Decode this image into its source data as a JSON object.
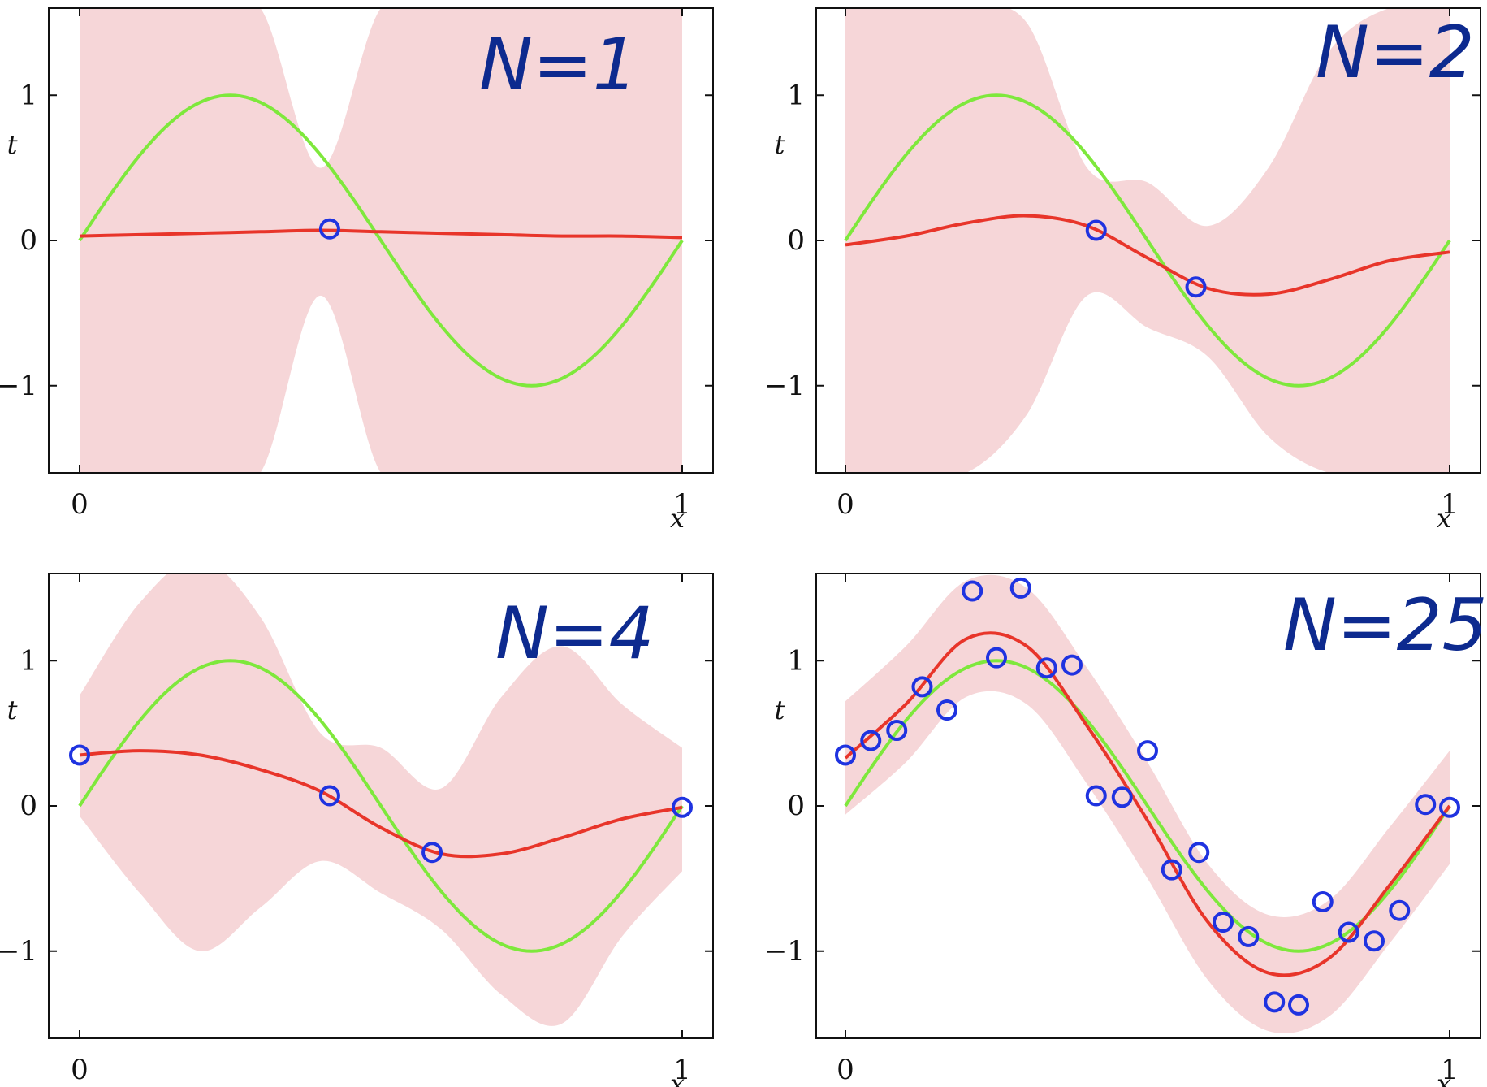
{
  "colors": {
    "truth": "#7ee83c",
    "mean": "#e8352a",
    "band": "#f6d6d8",
    "points": "#1f33e0",
    "annotation": "#0d2a8f",
    "axes": "#111111"
  },
  "chart_data": [
    {
      "type": "line",
      "annotation": "N=1",
      "xlabel": "x",
      "ylabel": "t",
      "xlim": [
        0,
        1
      ],
      "ylim": [
        -1.6,
        1.6
      ],
      "xticks": [
        0,
        1
      ],
      "yticks": [
        -1,
        0,
        1
      ],
      "x": [
        0,
        0.1,
        0.2,
        0.3,
        0.4,
        0.5,
        0.6,
        0.7,
        0.8,
        0.9,
        1.0
      ],
      "series": [
        {
          "role": "truth",
          "values": [
            0,
            0.59,
            0.95,
            0.95,
            0.59,
            0,
            -0.59,
            -0.95,
            -0.95,
            -0.59,
            0
          ]
        },
        {
          "role": "mean",
          "values": [
            0.03,
            0.04,
            0.05,
            0.06,
            0.07,
            0.06,
            0.05,
            0.04,
            0.03,
            0.03,
            0.02
          ]
        },
        {
          "role": "band_upper",
          "values": [
            1.6,
            1.6,
            1.6,
            1.6,
            0.5,
            1.6,
            1.6,
            1.6,
            1.6,
            1.6,
            1.6
          ]
        },
        {
          "role": "band_lower",
          "values": [
            -1.6,
            -1.6,
            -1.6,
            -1.6,
            -0.38,
            -1.6,
            -1.6,
            -1.6,
            -1.6,
            -1.6,
            -1.6
          ]
        }
      ],
      "points": {
        "x": [
          0.415
        ],
        "y": [
          0.08
        ]
      }
    },
    {
      "type": "line",
      "annotation": "N=2",
      "xlabel": "x",
      "ylabel": "t",
      "xlim": [
        0,
        1
      ],
      "ylim": [
        -1.6,
        1.6
      ],
      "xticks": [
        0,
        1
      ],
      "yticks": [
        -1,
        0,
        1
      ],
      "x": [
        0,
        0.1,
        0.2,
        0.3,
        0.4,
        0.5,
        0.6,
        0.7,
        0.8,
        0.9,
        1.0
      ],
      "series": [
        {
          "role": "truth",
          "values": [
            0,
            0.59,
            0.95,
            0.95,
            0.59,
            0,
            -0.59,
            -0.95,
            -0.95,
            -0.59,
            0
          ]
        },
        {
          "role": "mean",
          "values": [
            -0.03,
            0.03,
            0.12,
            0.17,
            0.1,
            -0.12,
            -0.33,
            -0.37,
            -0.27,
            -0.14,
            -0.08
          ]
        },
        {
          "role": "band_upper",
          "values": [
            1.6,
            1.6,
            1.6,
            1.5,
            0.5,
            0.4,
            0.1,
            0.5,
            1.3,
            1.6,
            1.6
          ]
        },
        {
          "role": "band_lower",
          "values": [
            -1.6,
            -1.6,
            -1.6,
            -1.2,
            -0.38,
            -0.6,
            -0.8,
            -1.35,
            -1.6,
            -1.6,
            -1.6
          ]
        }
      ],
      "points": {
        "x": [
          0.415,
          0.58
        ],
        "y": [
          0.07,
          -0.32
        ]
      }
    },
    {
      "type": "line",
      "annotation": "N=4",
      "xlabel": "x",
      "ylabel": "t",
      "xlim": [
        0,
        1
      ],
      "ylim": [
        -1.6,
        1.6
      ],
      "xticks": [
        0,
        1
      ],
      "yticks": [
        -1,
        0,
        1
      ],
      "x": [
        0,
        0.1,
        0.2,
        0.3,
        0.4,
        0.5,
        0.6,
        0.7,
        0.8,
        0.9,
        1.0
      ],
      "series": [
        {
          "role": "truth",
          "values": [
            0,
            0.59,
            0.95,
            0.95,
            0.59,
            0,
            -0.59,
            -0.95,
            -0.95,
            -0.59,
            0
          ]
        },
        {
          "role": "mean",
          "values": [
            0.35,
            0.38,
            0.35,
            0.25,
            0.1,
            -0.15,
            -0.33,
            -0.33,
            -0.22,
            -0.09,
            -0.01
          ]
        },
        {
          "role": "band_upper",
          "values": [
            0.76,
            1.4,
            1.7,
            1.3,
            0.5,
            0.4,
            0.12,
            0.75,
            1.1,
            0.7,
            0.4
          ]
        },
        {
          "role": "band_lower",
          "values": [
            -0.07,
            -0.6,
            -1.0,
            -0.7,
            -0.38,
            -0.6,
            -0.85,
            -1.3,
            -1.5,
            -0.9,
            -0.45
          ]
        }
      ],
      "points": {
        "x": [
          0,
          0.415,
          0.585,
          1.0
        ],
        "y": [
          0.35,
          0.07,
          -0.32,
          -0.01
        ]
      }
    },
    {
      "type": "line",
      "annotation": "N=25",
      "xlabel": "x",
      "ylabel": "t",
      "xlim": [
        0,
        1
      ],
      "ylim": [
        -1.6,
        1.6
      ],
      "xticks": [
        0,
        1
      ],
      "yticks": [
        -1,
        0,
        1
      ],
      "x": [
        0,
        0.1,
        0.2,
        0.3,
        0.4,
        0.5,
        0.6,
        0.7,
        0.8,
        0.9,
        1.0
      ],
      "series": [
        {
          "role": "truth",
          "values": [
            0,
            0.59,
            0.95,
            0.95,
            0.59,
            0,
            -0.59,
            -0.95,
            -0.95,
            -0.59,
            0
          ]
        },
        {
          "role": "mean",
          "values": [
            0.33,
            0.7,
            1.15,
            1.1,
            0.55,
            -0.1,
            -0.8,
            -1.15,
            -1.05,
            -0.55,
            0
          ]
        },
        {
          "role": "band_upper",
          "values": [
            0.72,
            1.1,
            1.55,
            1.5,
            0.95,
            0.3,
            -0.4,
            -0.75,
            -0.65,
            -0.15,
            0.38
          ]
        },
        {
          "role": "band_lower",
          "values": [
            -0.06,
            0.3,
            0.75,
            0.7,
            0.15,
            -0.5,
            -1.2,
            -1.55,
            -1.45,
            -0.95,
            -0.4
          ]
        }
      ],
      "points": {
        "x": [
          0,
          0.042,
          0.085,
          0.127,
          0.168,
          0.21,
          0.25,
          0.29,
          0.333,
          0.375,
          0.415,
          0.458,
          0.5,
          0.54,
          0.585,
          0.625,
          0.667,
          0.71,
          0.75,
          0.79,
          0.833,
          0.875,
          0.917,
          0.96,
          1.0
        ],
        "y": [
          0.35,
          0.45,
          0.52,
          0.82,
          0.66,
          1.48,
          1.02,
          1.5,
          0.95,
          0.97,
          0.07,
          0.06,
          0.38,
          -0.44,
          -0.32,
          -0.8,
          -0.9,
          -1.35,
          -1.37,
          -0.66,
          -0.87,
          -0.93,
          -0.72,
          0.01,
          -0.01
        ]
      }
    }
  ]
}
